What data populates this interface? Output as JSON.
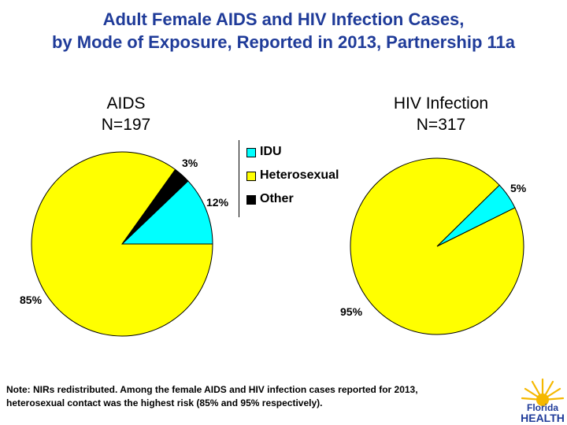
{
  "title_line1": "Adult Female AIDS and HIV Infection Cases,",
  "title_line2": "by Mode of Exposure, Reported in 2013, Partnership 11a",
  "chart_data": [
    {
      "type": "pie",
      "title": "AIDS",
      "subtitle": "N=197",
      "categories": [
        "IDU",
        "Heterosexual",
        "Other"
      ],
      "values": [
        12,
        85,
        3
      ],
      "labels": [
        "12%",
        "85%",
        "3%"
      ]
    },
    {
      "type": "pie",
      "title": "HIV Infection",
      "subtitle": "N=317",
      "categories": [
        "IDU",
        "Heterosexual",
        "Other"
      ],
      "values": [
        5,
        95,
        0
      ],
      "labels": [
        "5%",
        "95%",
        ""
      ]
    }
  ],
  "legend": [
    {
      "label": "IDU",
      "color": "#00ffff"
    },
    {
      "label": "Heterosexual",
      "color": "#ffff00"
    },
    {
      "label": "Other",
      "color": "#000000"
    }
  ],
  "note_line1": "Note:  NIRs redistributed.  Among the female AIDS and HIV infection cases reported for 2013,",
  "note_line2": "heterosexual contact was the highest risk (85% and 95% respectively).",
  "logo_line1": "Florida",
  "logo_line2": "HEALTH"
}
